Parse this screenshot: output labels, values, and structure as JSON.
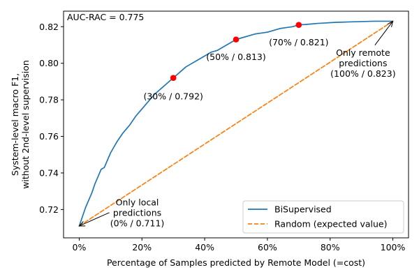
{
  "chart_data": {
    "type": "line",
    "xlabel": "Percentage of Samples predicted by Remote Model (=cost)",
    "ylabel_lines": [
      "System-level macro F1,",
      "without 2nd-level supervision"
    ],
    "xlim": [
      -5,
      105
    ],
    "ylim": [
      0.7045,
      0.8285
    ],
    "x_ticks": [
      0,
      20,
      40,
      60,
      80,
      100
    ],
    "x_tick_labels": [
      "0%",
      "20%",
      "40%",
      "60%",
      "80%",
      "100%"
    ],
    "y_ticks": [
      0.72,
      0.74,
      0.76,
      0.78,
      0.8,
      0.82
    ],
    "y_tick_labels": [
      "0.72",
      "0.74",
      "0.76",
      "0.78",
      "0.80",
      "0.82"
    ],
    "top_left_text": "AUC-RAC = 0.775",
    "legend_position": "lower right",
    "series": [
      {
        "name": "BiSupervised",
        "style": "solid",
        "color": "#1f77b4",
        "x": [
          0,
          1,
          2,
          3,
          4,
          5,
          6,
          7,
          8,
          9,
          10,
          12,
          14,
          16,
          18,
          20,
          22,
          24,
          26,
          28,
          30,
          32,
          34,
          36,
          38,
          40,
          42,
          44,
          46,
          48,
          50,
          52,
          54,
          56,
          58,
          60,
          62,
          64,
          66,
          68,
          70,
          72,
          74,
          76,
          78,
          80,
          82,
          84,
          86,
          88,
          90,
          92,
          94,
          96,
          98,
          100
        ],
        "y": [
          0.711,
          0.716,
          0.721,
          0.725,
          0.729,
          0.734,
          0.738,
          0.742,
          0.743,
          0.747,
          0.751,
          0.757,
          0.762,
          0.766,
          0.771,
          0.775,
          0.779,
          0.783,
          0.786,
          0.789,
          0.792,
          0.795,
          0.798,
          0.8,
          0.802,
          0.804,
          0.806,
          0.807,
          0.809,
          0.811,
          0.813,
          0.814,
          0.815,
          0.816,
          0.8165,
          0.817,
          0.818,
          0.819,
          0.8195,
          0.82,
          0.821,
          0.8212,
          0.8215,
          0.8218,
          0.822,
          0.8222,
          0.8224,
          0.8225,
          0.8226,
          0.8227,
          0.8228,
          0.8229,
          0.823,
          0.823,
          0.823,
          0.823
        ]
      },
      {
        "name": "Random (expected value)",
        "style": "dashed",
        "color": "#ff7f0e",
        "x": [
          0,
          100
        ],
        "y": [
          0.711,
          0.823
        ]
      }
    ],
    "highlight_points": [
      {
        "x": 30,
        "y": 0.792
      },
      {
        "x": 50,
        "y": 0.813
      },
      {
        "x": 70,
        "y": 0.821
      }
    ],
    "highlight_color": "#ff0000",
    "annotations": [
      {
        "lines": [
          "(30% / 0.792)"
        ],
        "at": [
          30,
          0.782
        ]
      },
      {
        "lines": [
          "(50% / 0.813)"
        ],
        "at": [
          50,
          0.8035
        ]
      },
      {
        "lines": [
          "(70% / 0.821)"
        ],
        "at": [
          70,
          0.8115
        ]
      },
      {
        "lines": [
          "Only remote",
          "predictions",
          "(100% / 0.823)"
        ],
        "at": [
          90.5,
          0.8
        ],
        "arrow_to": [
          100,
          0.823
        ]
      },
      {
        "lines": [
          "Only local",
          "predictions",
          "(0% / 0.711)"
        ],
        "at": [
          18.5,
          0.7183
        ],
        "arrow_to": [
          0,
          0.711
        ]
      }
    ]
  }
}
